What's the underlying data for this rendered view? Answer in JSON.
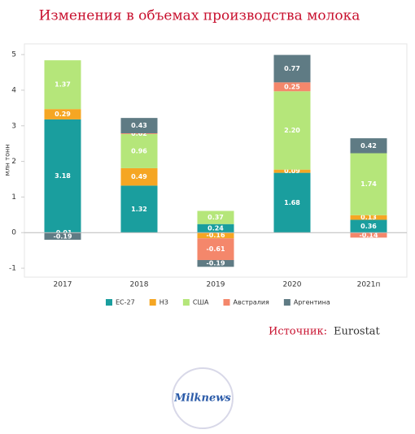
{
  "chart_data": {
    "type": "stacked-bar",
    "title": "Изменения в объемах производства молока",
    "y_label": "млн тонн",
    "categories": [
      "2017",
      "2018",
      "2019",
      "2020",
      "2021п"
    ],
    "series": [
      {
        "name": "ЕС-27",
        "color": "#1a9e9e",
        "values": [
          3.18,
          1.32,
          0.24,
          1.68,
          0.36
        ],
        "value_labels": [
          "3.18",
          "1.32",
          "0.24",
          "1.68",
          "0.36"
        ]
      },
      {
        "name": "НЗ",
        "color": "#f5a623",
        "values": [
          0.29,
          0.49,
          -0.16,
          0.09,
          0.13
        ],
        "value_labels": [
          "0.29",
          "0.49",
          "-0.16",
          "0.09",
          "0.13"
        ]
      },
      {
        "name": "США",
        "color": "#b5e67a",
        "values": [
          1.37,
          0.96,
          0.37,
          2.2,
          1.74
        ],
        "value_labels": [
          "1.37",
          "0.96",
          "0.37",
          "2.20",
          "1.74"
        ]
      },
      {
        "name": "Австралия",
        "color": "#f4876b",
        "values": [
          -0.01,
          0.02,
          -0.61,
          0.25,
          -0.14
        ],
        "value_labels": [
          "-0.01",
          "0.02",
          "-0.61",
          "0.25",
          "-0.14"
        ]
      },
      {
        "name": "Аргентина",
        "color": "#5f7b84",
        "values": [
          -0.19,
          0.43,
          -0.19,
          0.77,
          0.42
        ],
        "value_labels": [
          "-0.19",
          "0.43",
          "-0.19",
          "0.77",
          "0.42"
        ]
      }
    ],
    "ylim": [
      -1.25,
      5.3
    ],
    "yticks": [
      -1,
      0,
      1,
      2,
      3,
      4,
      5
    ],
    "source_label": "Источник:",
    "source": "Eurostat",
    "logo": "Milknews"
  }
}
